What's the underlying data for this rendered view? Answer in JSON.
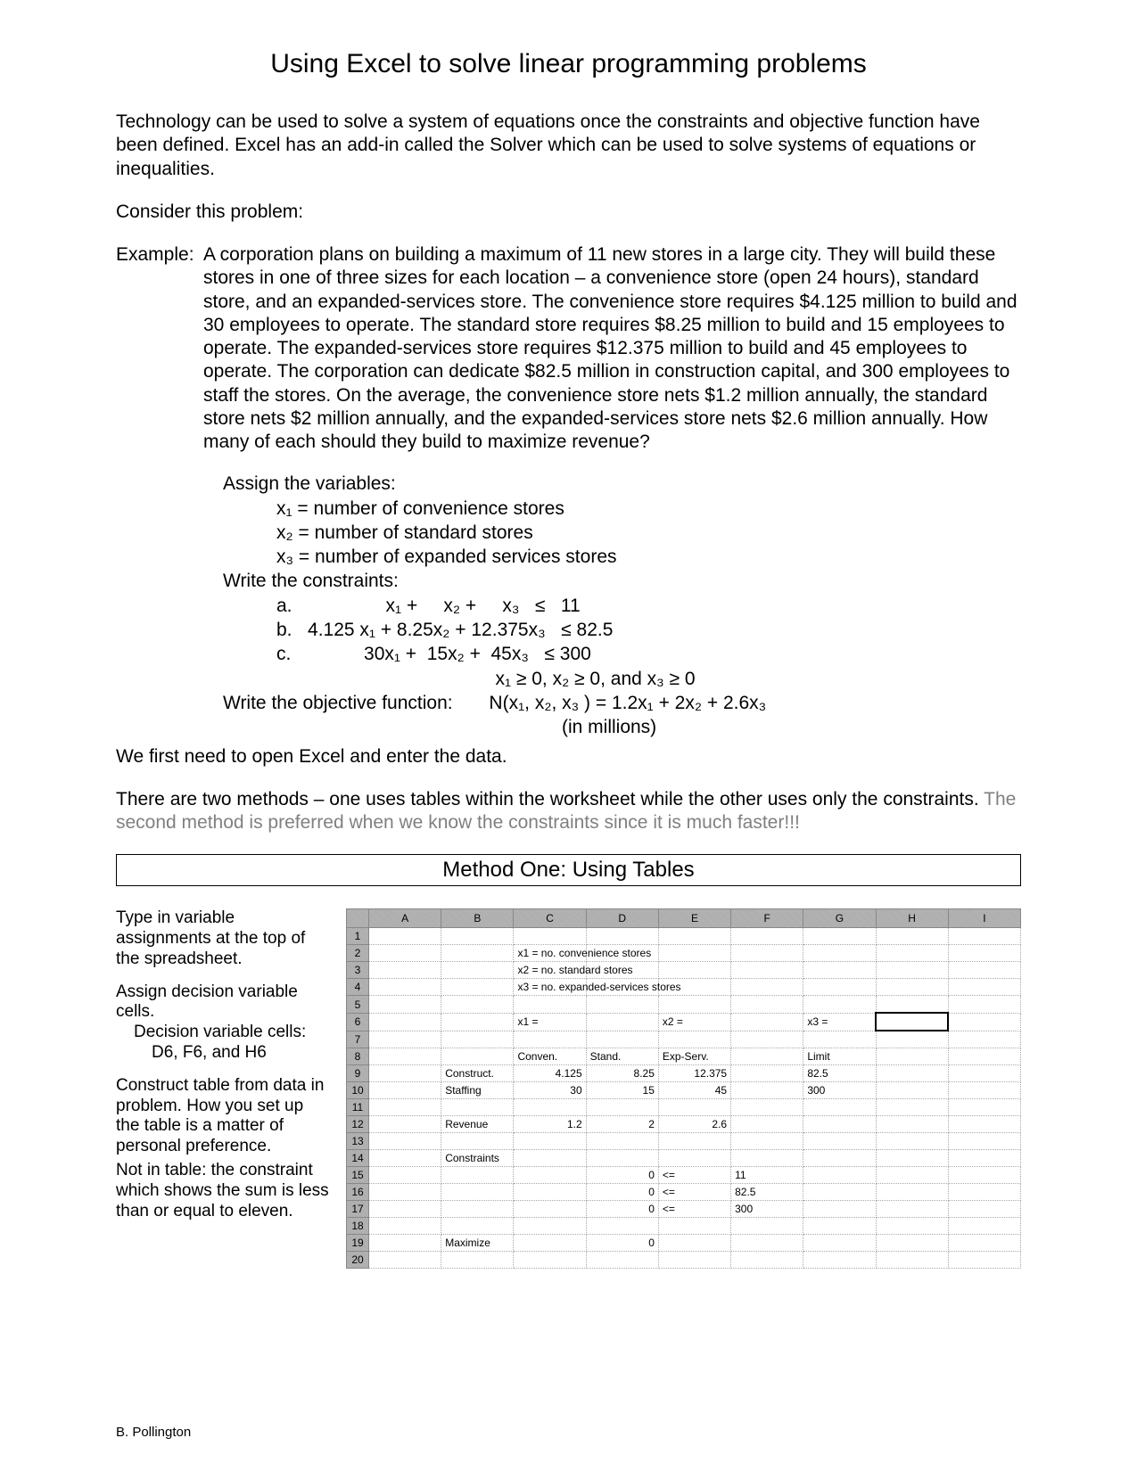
{
  "title": "Using Excel to solve linear programming problems",
  "intro": "Technology can be used to solve a system of equations once the constraints and objective function have been defined.  Excel has an add-in called the Solver which can be used to solve systems of equations or inequalities.",
  "consider": "Consider this problem:",
  "example_label": "Example:",
  "example_body": "A corporation plans on building a maximum of 11 new stores in a large city.  They will build these stores in one of three sizes for each location – a convenience store (open 24 hours), standard store, and an expanded-services store.  The convenience store requires $4.125 million to build and 30 employees to operate.  The standard store requires $8.25 million to build and 15 employees to operate.  The expanded-services  store requires $12.375 million to build and  45 employees to operate.  The corporation can dedicate $82.5 million in construction capital, and 300 employees to staff the stores.  On the average, the convenience store nets $1.2 million annually, the standard store nets $2 million annually, and the expanded-services store nets $2.6 million annually.  How many of each should they build to maximize revenue?",
  "assign": {
    "heading": "Assign the variables:",
    "v1": "x₁ = number of convenience stores",
    "v2": "x₂ = number of standard stores",
    "v3": "x₃ = number of expanded services stores",
    "constraints_heading": "Write the constraints:",
    "ca": "a.                  x₁ +     x₂ +     x₃   ≤   11",
    "cb": "b.   4.125 x₁ + 8.25x₂ + 12.375x₃   ≤ 82.5",
    "cc": "c.              30x₁ +  15x₂ +  45x₃   ≤ 300",
    "nonneg": "x₁ ≥ 0, x₂ ≥ 0, and x₃ ≥ 0",
    "objective_label": "Write the objective function:",
    "objective": "N(x₁, x₂, x₃ ) = 1.2x₁ + 2x₂ + 2.6x₃",
    "objective_units": "(in millions)"
  },
  "open_excel": "We first need to open Excel and enter the data.",
  "methods_intro": "There are two methods – one uses tables within the worksheet while the other uses only the constraints.",
  "methods_gray": "  The second method is preferred when we know the constraints since it is much faster!!!",
  "method_box": "Method One:  Using Tables",
  "left": {
    "p1": "Type in variable assignments at the top of the spreadsheet.",
    "p2": "Assign decision variable cells.",
    "p2b": "Decision variable cells:",
    "p2c": "D6, F6,  and H6",
    "p3": "Construct table from data in problem.  How you set up the table is a matter of personal preference.",
    "p4": "Not in table:  the constraint which shows the sum is less than or equal to eleven."
  },
  "sheet": {
    "cols": [
      "A",
      "B",
      "C",
      "D",
      "E",
      "F",
      "G",
      "H",
      "I"
    ],
    "rows": [
      {
        "n": "1",
        "cells": [
          "",
          "",
          "",
          "",
          "",
          "",
          "",
          "",
          ""
        ]
      },
      {
        "n": "2",
        "cells": [
          "",
          "",
          "x1 = no. convenience stores",
          "",
          "",
          "",
          "",
          "",
          ""
        ]
      },
      {
        "n": "3",
        "cells": [
          "",
          "",
          "x2 = no. standard stores",
          "",
          "",
          "",
          "",
          "",
          ""
        ]
      },
      {
        "n": "4",
        "cells": [
          "",
          "",
          "x3 = no. expanded-services stores",
          "",
          "",
          "",
          "",
          "",
          ""
        ]
      },
      {
        "n": "5",
        "cells": [
          "",
          "",
          "",
          "",
          "",
          "",
          "",
          "",
          ""
        ]
      },
      {
        "n": "6",
        "cells": [
          "",
          "",
          "x1 =",
          "",
          "x2 =",
          "",
          "x3 =",
          "",
          ""
        ]
      },
      {
        "n": "7",
        "cells": [
          "",
          "",
          "",
          "",
          "",
          "",
          "",
          "",
          ""
        ]
      },
      {
        "n": "8",
        "cells": [
          "",
          "",
          "Conven.",
          "Stand.",
          "Exp-Serv.",
          "",
          "Limit",
          "",
          ""
        ]
      },
      {
        "n": "9",
        "cells": [
          "",
          "Construct.",
          "4.125",
          "8.25",
          "12.375",
          "",
          "82.5",
          "",
          ""
        ]
      },
      {
        "n": "10",
        "cells": [
          "",
          "Staffing",
          "30",
          "15",
          "45",
          "",
          "300",
          "",
          ""
        ]
      },
      {
        "n": "11",
        "cells": [
          "",
          "",
          "",
          "",
          "",
          "",
          "",
          "",
          ""
        ]
      },
      {
        "n": "12",
        "cells": [
          "",
          "Revenue",
          "1.2",
          "2",
          "2.6",
          "",
          "",
          "",
          ""
        ]
      },
      {
        "n": "13",
        "cells": [
          "",
          "",
          "",
          "",
          "",
          "",
          "",
          "",
          ""
        ]
      },
      {
        "n": "14",
        "cells": [
          "",
          "Constraints",
          "",
          "",
          "",
          "",
          "",
          "",
          ""
        ]
      },
      {
        "n": "15",
        "cells": [
          "",
          "",
          "",
          "0",
          "<=",
          "11",
          "",
          "",
          ""
        ]
      },
      {
        "n": "16",
        "cells": [
          "",
          "",
          "",
          "0",
          "<=",
          "82.5",
          "",
          "",
          ""
        ]
      },
      {
        "n": "17",
        "cells": [
          "",
          "",
          "",
          "0",
          "<=",
          "300",
          "",
          "",
          ""
        ]
      },
      {
        "n": "18",
        "cells": [
          "",
          "",
          "",
          "",
          "",
          "",
          "",
          "",
          ""
        ]
      },
      {
        "n": "19",
        "cells": [
          "",
          "Maximize",
          "",
          "0",
          "",
          "",
          "",
          "",
          ""
        ]
      },
      {
        "n": "20",
        "cells": [
          "",
          "",
          "",
          "",
          "",
          "",
          "",
          "",
          ""
        ]
      }
    ]
  },
  "footer": "B. Pollington"
}
